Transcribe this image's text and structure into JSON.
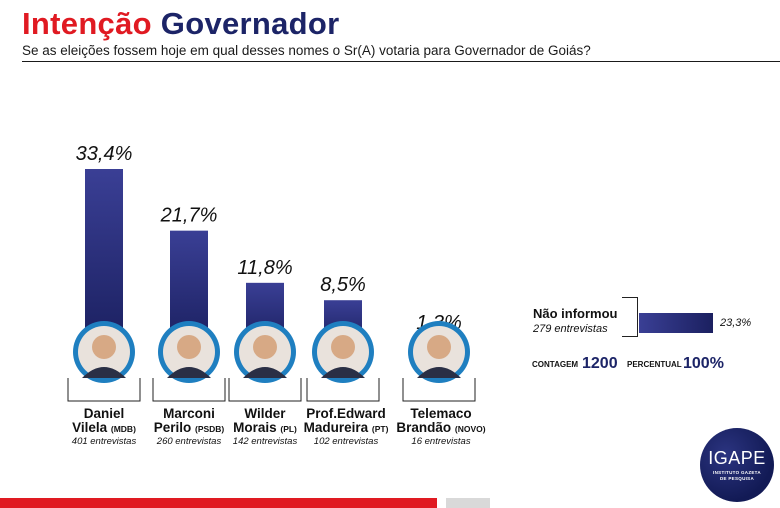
{
  "header": {
    "title_part1": "Intenção",
    "title_part2": "Governador",
    "subtitle": "Se as eleições fossem hoje em qual desses nomes o Sr(A) votaria para Governador de Goiás?"
  },
  "chart_data": {
    "type": "bar",
    "categories": [
      "Daniel Vilela (MDB)",
      "Marconi Perilo (PSDB)",
      "Wilder Morais (PL)",
      "Prof.Edward Madureira (PT)",
      "Telemaco Brandão (NOVO)"
    ],
    "values": [
      33.4,
      21.7,
      11.8,
      8.5,
      1.3
    ],
    "value_labels": [
      "33,4%",
      "21,7%",
      "11,8%",
      "8,5%",
      "1,3%"
    ],
    "candidates": [
      {
        "line1": "Daniel",
        "line2": "Vilela",
        "party": "(MDB)",
        "interviews": "401 entrevistas"
      },
      {
        "line1": "Marconi",
        "line2": "Perilo",
        "party": "(PSDB)",
        "interviews": "260 entrevistas"
      },
      {
        "line1": "Wilder",
        "line2": "Morais",
        "party": "(PL)",
        "interviews": "142 entrevistas"
      },
      {
        "line1": "Prof.Edward",
        "line2": "Madureira",
        "party": "(PT)",
        "interviews": "102 entrevistas"
      },
      {
        "line1": "Telemaco",
        "line2": "Brandão",
        "party": "(NOVO)",
        "interviews": "16 entrevistas"
      }
    ],
    "ylim": [
      0,
      33.4
    ],
    "xlabel": "",
    "ylabel": "",
    "colors": {
      "bar_top": "#3a3f95",
      "bar_bottom": "#1b2060",
      "photo_ring": "#1f7fc0"
    }
  },
  "not_informed": {
    "label": "Não informou",
    "interviews": "279 entrevistas",
    "value": 23.3,
    "value_label": "23,3%"
  },
  "totals": {
    "count_label": "CONTAGEM",
    "count_value": "1200",
    "percent_label": "PERCENTUAL",
    "percent_value": "100%"
  },
  "logo": {
    "name": "IGAPE",
    "subtitle_line1": "INSTITUTO GAZETA",
    "subtitle_line2": "DE PESQUISA"
  }
}
